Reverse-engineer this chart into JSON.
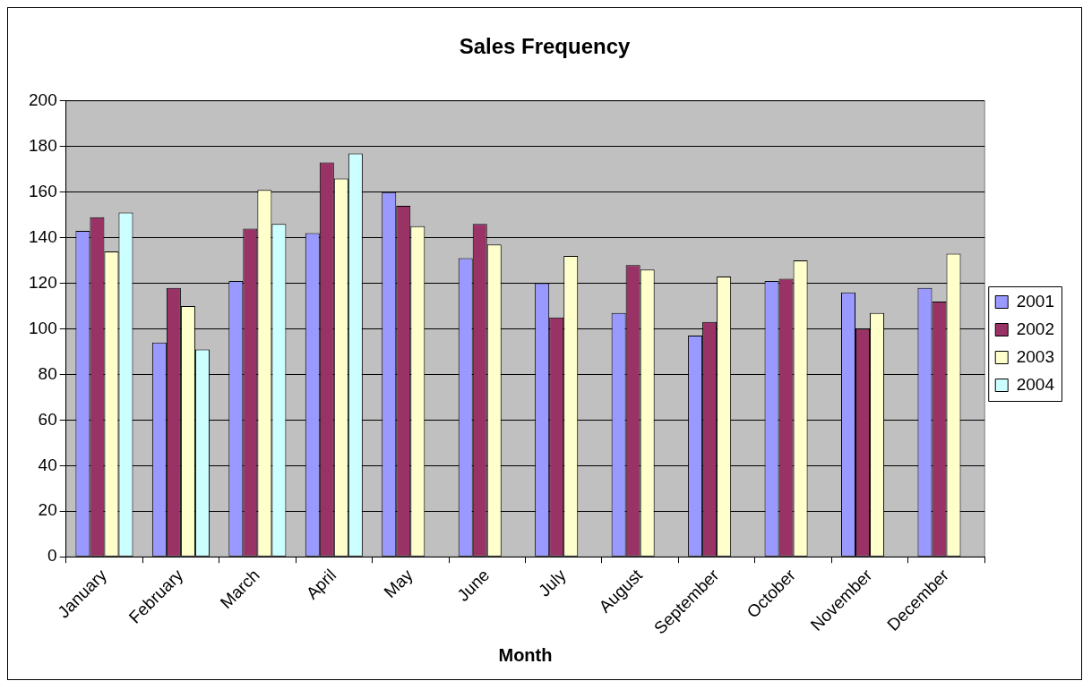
{
  "chart_data": {
    "type": "bar",
    "title": "Sales Frequency",
    "xlabel": "Month",
    "categories": [
      "January",
      "February",
      "March",
      "April",
      "May",
      "June",
      "July",
      "August",
      "September",
      "October",
      "November",
      "December"
    ],
    "series": [
      {
        "name": "2001",
        "color": "#9999ff",
        "values": [
          143,
          94,
          121,
          142,
          160,
          131,
          120,
          107,
          97,
          121,
          116,
          118
        ]
      },
      {
        "name": "2002",
        "color": "#993366",
        "values": [
          149,
          118,
          144,
          173,
          154,
          146,
          105,
          128,
          103,
          122,
          100,
          112
        ]
      },
      {
        "name": "2003",
        "color": "#ffffcc",
        "values": [
          134,
          110,
          161,
          166,
          145,
          137,
          132,
          126,
          123,
          130,
          107,
          133
        ]
      },
      {
        "name": "2004",
        "color": "#ccffff",
        "values": [
          151,
          91,
          146,
          177,
          null,
          null,
          null,
          null,
          null,
          null,
          null,
          null
        ]
      }
    ],
    "ylim": [
      0,
      200
    ],
    "yticks": [
      0,
      20,
      40,
      60,
      80,
      100,
      120,
      140,
      160,
      180,
      200
    ],
    "grid": "y",
    "legend": "right"
  }
}
